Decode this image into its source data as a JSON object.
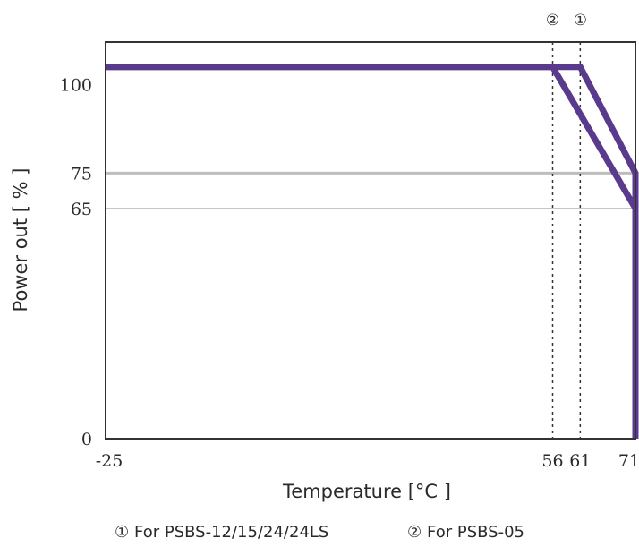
{
  "chart_data": {
    "type": "line",
    "xlabel": "Temperature [°C ]",
    "ylabel": "Power out [ % ]",
    "xlim": [
      -25,
      71
    ],
    "ylim": [
      0,
      112
    ],
    "x_ticks": [
      "-25",
      "56",
      "61",
      "71"
    ],
    "y_ticks": [
      "0",
      "65",
      "75",
      "100"
    ],
    "reference_lines": [
      {
        "axis": "y",
        "value": 75
      },
      {
        "axis": "y",
        "value": 65
      },
      {
        "axis": "x",
        "value": 56,
        "marker": "②"
      },
      {
        "axis": "x",
        "value": 61,
        "marker": "①"
      }
    ],
    "series": [
      {
        "name": "For PSBS-12/15/24/24LS",
        "marker": "①",
        "points": [
          [
            -25,
            105
          ],
          [
            61,
            105
          ],
          [
            71,
            75
          ],
          [
            71,
            0
          ]
        ]
      },
      {
        "name": "For PSBS-05",
        "marker": "②",
        "points": [
          [
            -25,
            105
          ],
          [
            56,
            105
          ],
          [
            71,
            65
          ],
          [
            71,
            0
          ]
        ]
      }
    ],
    "line_color": "#5a3a8c",
    "reference_color": "#bdbdbd",
    "legend": [
      {
        "marker": "①",
        "label": "For PSBS-12/15/24/24LS"
      },
      {
        "marker": "②",
        "label": "For PSBS-05"
      }
    ],
    "legend_placement": "bottom",
    "grid": false
  }
}
